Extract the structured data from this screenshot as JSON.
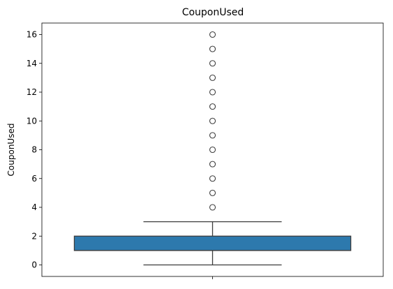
{
  "chart_data": {
    "type": "box",
    "title": "CouponUsed",
    "xlabel": "",
    "ylabel": "CouponUsed",
    "ylim": [
      -0.8,
      16.8
    ],
    "yticks": [
      0,
      2,
      4,
      6,
      8,
      10,
      12,
      14,
      16
    ],
    "grid": false,
    "legend": "none",
    "box": {
      "whisker_low": 0,
      "q1": 1,
      "median": 1,
      "q3": 2,
      "whisker_high": 3,
      "color": "#2d79ad",
      "line_color": "#3d3d3d"
    },
    "outliers": [
      4,
      5,
      6,
      7,
      8,
      9,
      10,
      11,
      12,
      13,
      14,
      15,
      16
    ]
  }
}
